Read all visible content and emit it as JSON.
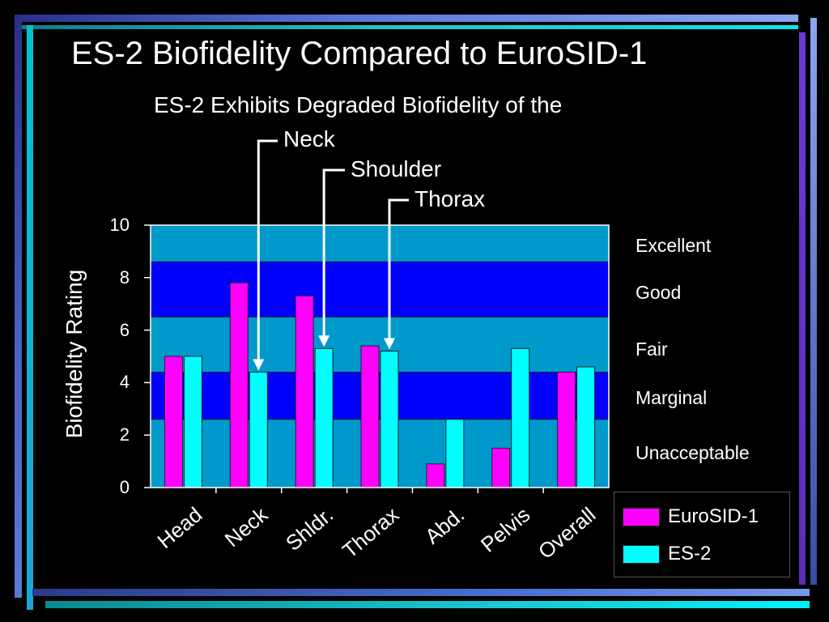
{
  "slide": {
    "title": "ES-2 Biofidelity Compared to EuroSID-1",
    "subtitle": "ES-2 Exhibits Degraded Biofidelity of the"
  },
  "callouts": [
    {
      "label": "Neck",
      "target_category": "Neck",
      "target_series": "ES-2"
    },
    {
      "label": "Shoulder",
      "target_category": "Shldr.",
      "target_series": "ES-2"
    },
    {
      "label": "Thorax",
      "target_category": "Thorax",
      "target_series": "ES-2"
    }
  ],
  "colors": {
    "eurosid": "#ff00ff",
    "es2": "#00ffff",
    "band_light": "#0099cc",
    "band_dark": "#0000ff",
    "arrow": "#ffffff"
  },
  "chart_data": {
    "type": "bar",
    "categories": [
      "Head",
      "Neck",
      "Shldr.",
      "Thorax",
      "Abd.",
      "Pelvis",
      "Overall"
    ],
    "series": [
      {
        "name": "EuroSID-1",
        "values": [
          5.0,
          7.8,
          7.3,
          5.4,
          0.9,
          1.5,
          4.4
        ]
      },
      {
        "name": "ES-2",
        "values": [
          5.0,
          4.4,
          5.3,
          5.2,
          2.6,
          5.3,
          4.6
        ]
      }
    ],
    "ylabel": "Biofidelity Rating",
    "ylim": [
      0,
      10
    ],
    "yticks": [
      "0",
      "2",
      "4",
      "6",
      "8",
      "10"
    ],
    "rating_bands": [
      {
        "label": "Excellent",
        "from": 8.6,
        "to": 10
      },
      {
        "label": "Good",
        "from": 6.5,
        "to": 8.6
      },
      {
        "label": "Fair",
        "from": 4.4,
        "to": 6.5
      },
      {
        "label": "Marginal",
        "from": 2.6,
        "to": 4.4
      },
      {
        "label": "Unacceptable",
        "from": 0,
        "to": 2.6
      }
    ],
    "legend": {
      "position": "bottom-right"
    },
    "grid": false
  }
}
